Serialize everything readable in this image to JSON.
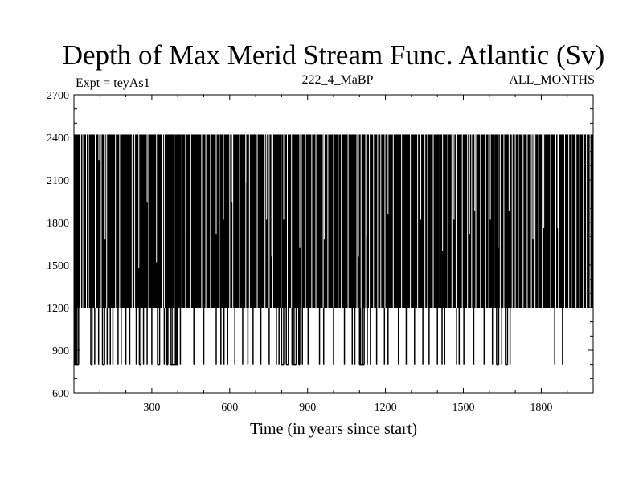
{
  "chart_data": {
    "type": "line",
    "title": "Depth of Max Merid Stream Func. Atlantic (Sv)",
    "subtitle_left": "Expt = teyAs1",
    "subtitle_center": "222_4_MaBP",
    "subtitle_right": "ALL_MONTHS",
    "xlabel": "Time (in years since start)",
    "ylabel": "",
    "xlim": [
      0,
      2000
    ],
    "ylim": [
      600,
      2700
    ],
    "xticks": [
      300,
      600,
      900,
      1200,
      1500,
      1800
    ],
    "yticks": [
      600,
      900,
      1200,
      1500,
      1800,
      2100,
      2400,
      2700
    ],
    "grid": false,
    "series": [
      {
        "color": "#000000",
        "description_levels": [
          800,
          1200,
          2420
        ],
        "x_start": 0,
        "x_end": 2000,
        "x_step": 1,
        "dominant_segments": [
          {
            "x_start": 0,
            "x_end": 2000,
            "low": 1200,
            "high": 2420
          }
        ],
        "dips_to_800": [
          4,
          8,
          12,
          18,
          65,
          70,
          80,
          95,
          110,
          118,
          128,
          140,
          150,
          170,
          182,
          200,
          215,
          240,
          252,
          258,
          268,
          282,
          300,
          322,
          330,
          348,
          358,
          362,
          372,
          378,
          386,
          392,
          396,
          400,
          410,
          462,
          500,
          548,
          566,
          578,
          592,
          620,
          650,
          670,
          690,
          720,
          752,
          780,
          790,
          800,
          808,
          818,
          826,
          840,
          848,
          856,
          866,
          870,
          880,
          902,
          946,
          962,
          1000,
          1042,
          1072,
          1082,
          1100,
          1104,
          1112,
          1118,
          1130,
          1142,
          1166,
          1196,
          1210,
          1250,
          1280,
          1312,
          1344,
          1368,
          1400,
          1418,
          1428,
          1474,
          1484,
          1502,
          1540,
          1580,
          1612,
          1628,
          1636,
          1648,
          1662,
          1670,
          1680,
          1852,
          1882
        ],
        "gaps_at_1200": [
          26,
          34,
          48,
          56,
          82,
          105,
          126,
          160,
          176,
          224,
          234,
          288,
          308,
          342,
          348,
          386,
          416,
          430,
          450,
          492,
          508,
          526,
          560,
          600,
          612,
          638,
          662,
          676,
          706,
          736,
          752,
          766,
          798,
          822,
          838,
          876,
          892,
          916,
          932,
          960,
          978,
          1000,
          1018,
          1030,
          1056,
          1090,
          1106,
          1124,
          1138,
          1154,
          1170,
          1182,
          1198,
          1230,
          1262,
          1296,
          1324,
          1352,
          1362,
          1384,
          1410,
          1440,
          1456,
          1472,
          1496,
          1516,
          1532,
          1548,
          1566,
          1586,
          1598,
          1618,
          1642,
          1656,
          1688,
          1700,
          1712,
          1730,
          1746,
          1762,
          1776,
          1790,
          1804,
          1822,
          1836,
          1856,
          1866,
          1890,
          1906,
          1916,
          1934,
          1948,
          1962,
          1974,
          1988
        ],
        "partial_peaks": [
          {
            "x": 96,
            "value": 2240
          },
          {
            "x": 120,
            "value": 1680
          },
          {
            "x": 250,
            "value": 1480
          },
          {
            "x": 282,
            "value": 1940
          },
          {
            "x": 318,
            "value": 1520
          },
          {
            "x": 432,
            "value": 1720
          },
          {
            "x": 548,
            "value": 1720
          },
          {
            "x": 576,
            "value": 1820
          },
          {
            "x": 610,
            "value": 1940
          },
          {
            "x": 662,
            "value": 2080
          },
          {
            "x": 742,
            "value": 1820
          },
          {
            "x": 762,
            "value": 1560
          },
          {
            "x": 808,
            "value": 1820
          },
          {
            "x": 870,
            "value": 1620
          },
          {
            "x": 964,
            "value": 1680
          },
          {
            "x": 1000,
            "value": 2000
          },
          {
            "x": 1096,
            "value": 1560
          },
          {
            "x": 1128,
            "value": 1700
          },
          {
            "x": 1210,
            "value": 1860
          },
          {
            "x": 1336,
            "value": 1820
          },
          {
            "x": 1420,
            "value": 1600
          },
          {
            "x": 1464,
            "value": 1820
          },
          {
            "x": 1524,
            "value": 1720
          },
          {
            "x": 1544,
            "value": 1880
          },
          {
            "x": 1604,
            "value": 1820
          },
          {
            "x": 1634,
            "value": 1620
          },
          {
            "x": 1676,
            "value": 1880
          },
          {
            "x": 1768,
            "value": 1680
          },
          {
            "x": 1810,
            "value": 1760
          },
          {
            "x": 1864,
            "value": 1760
          }
        ]
      }
    ]
  }
}
